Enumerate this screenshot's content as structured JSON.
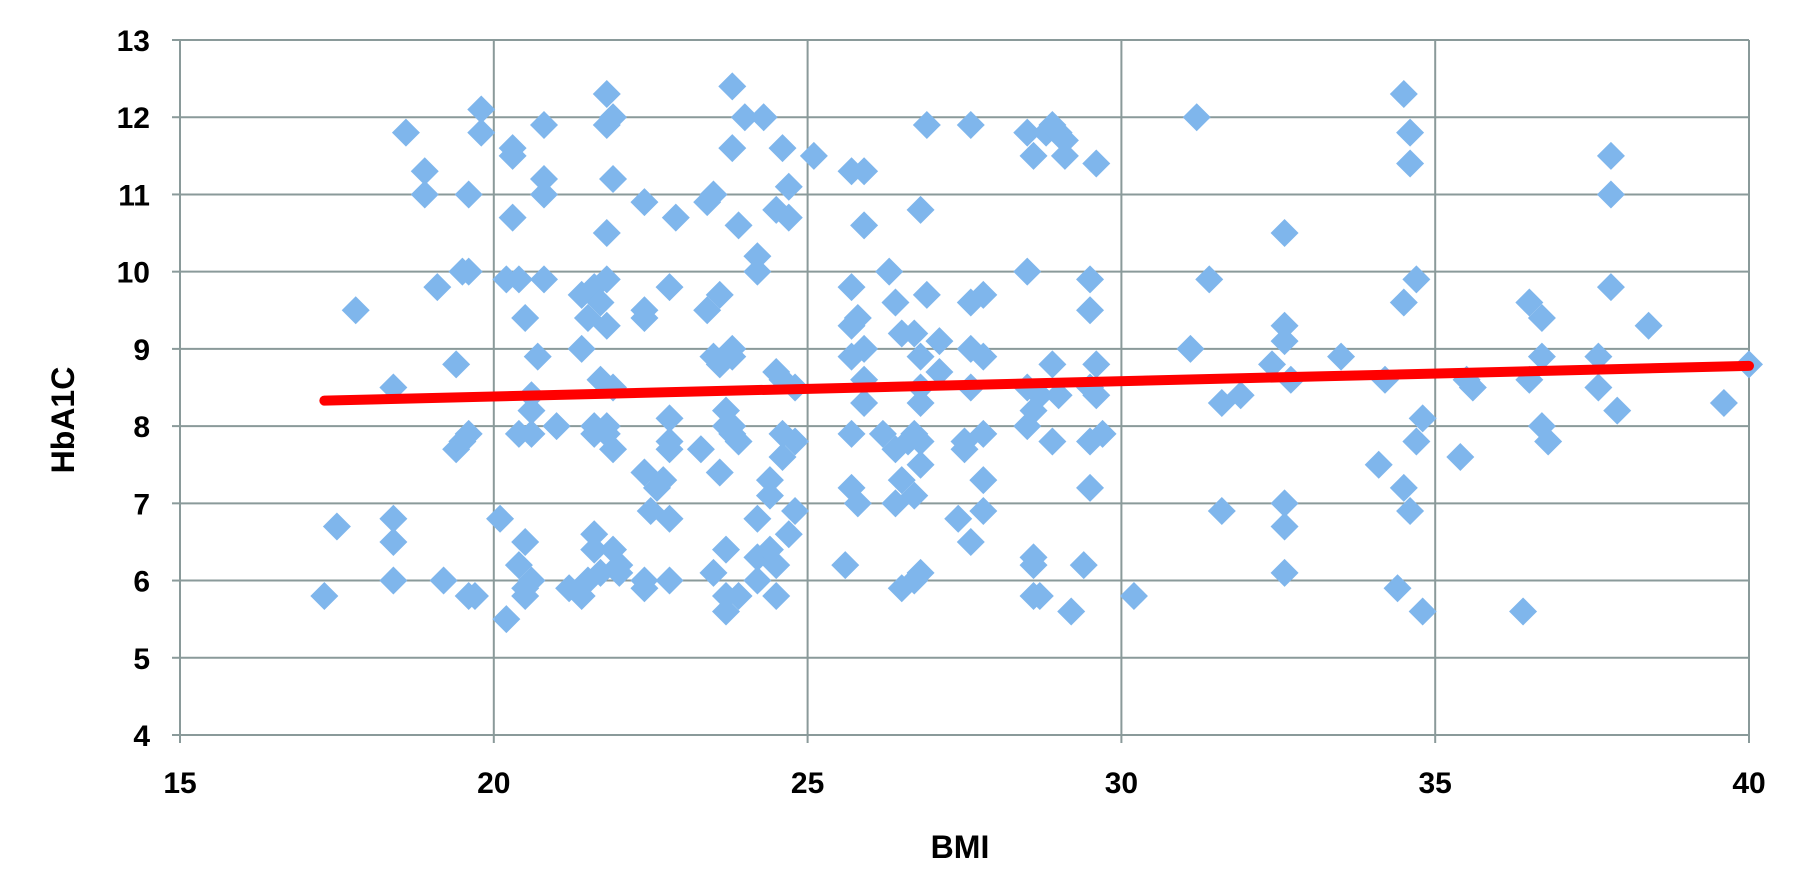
{
  "chart_data": {
    "type": "scatter",
    "xlabel": "BMI",
    "ylabel": "HbA1C",
    "xlim": [
      15,
      40
    ],
    "ylim": [
      4,
      13
    ],
    "x_ticks": [
      15,
      20,
      25,
      30,
      35,
      40
    ],
    "y_ticks": [
      4,
      5,
      6,
      7,
      8,
      9,
      10,
      11,
      12,
      13
    ],
    "grid": true,
    "legend": "none",
    "colors": {
      "points": "#7fb6ec",
      "trendline": "#ff0000",
      "grid": "#8a9a9a"
    },
    "trendline": {
      "x": [
        17.3,
        40.0
      ],
      "y": [
        8.33,
        8.78
      ]
    },
    "series": [
      {
        "marker": "diamond",
        "points": [
          [
            17.3,
            5.8
          ],
          [
            17.5,
            6.7
          ],
          [
            17.8,
            9.5
          ],
          [
            18.4,
            8.5
          ],
          [
            18.4,
            6.8
          ],
          [
            18.4,
            6.5
          ],
          [
            18.4,
            6.0
          ],
          [
            18.6,
            11.8
          ],
          [
            18.9,
            11.3
          ],
          [
            18.9,
            11.0
          ],
          [
            19.1,
            9.8
          ],
          [
            19.2,
            6.0
          ],
          [
            19.4,
            7.7
          ],
          [
            19.4,
            8.8
          ],
          [
            19.5,
            10.0
          ],
          [
            19.5,
            7.8
          ],
          [
            19.6,
            11.0
          ],
          [
            19.6,
            10.0
          ],
          [
            19.6,
            7.9
          ],
          [
            19.6,
            5.8
          ],
          [
            19.7,
            5.8
          ],
          [
            19.8,
            12.1
          ],
          [
            19.8,
            11.8
          ],
          [
            20.1,
            6.8
          ],
          [
            20.2,
            5.5
          ],
          [
            20.2,
            9.9
          ],
          [
            20.3,
            11.6
          ],
          [
            20.3,
            11.5
          ],
          [
            20.3,
            10.7
          ],
          [
            20.4,
            9.9
          ],
          [
            20.4,
            7.9
          ],
          [
            20.4,
            6.2
          ],
          [
            20.5,
            9.4
          ],
          [
            20.5,
            6.5
          ],
          [
            20.5,
            5.9
          ],
          [
            20.5,
            5.8
          ],
          [
            20.6,
            8.4
          ],
          [
            20.6,
            8.2
          ],
          [
            20.6,
            7.9
          ],
          [
            20.6,
            6.0
          ],
          [
            20.7,
            8.9
          ],
          [
            20.8,
            11.9
          ],
          [
            20.8,
            11.2
          ],
          [
            20.8,
            11.0
          ],
          [
            20.8,
            9.9
          ],
          [
            21.0,
            8.0
          ],
          [
            21.2,
            5.9
          ],
          [
            21.4,
            9.0
          ],
          [
            21.4,
            5.8
          ],
          [
            21.4,
            9.7
          ],
          [
            21.5,
            9.4
          ],
          [
            21.5,
            6.0
          ],
          [
            21.6,
            9.8
          ],
          [
            21.6,
            6.6
          ],
          [
            21.6,
            6.4
          ],
          [
            21.6,
            8.0
          ],
          [
            21.6,
            7.9
          ],
          [
            21.7,
            9.6
          ],
          [
            21.7,
            8.6
          ],
          [
            21.7,
            6.1
          ],
          [
            21.8,
            12.3
          ],
          [
            21.8,
            11.9
          ],
          [
            21.8,
            10.5
          ],
          [
            21.8,
            9.9
          ],
          [
            21.8,
            9.3
          ],
          [
            21.8,
            8.0
          ],
          [
            21.8,
            7.9
          ],
          [
            21.9,
            12.0
          ],
          [
            21.9,
            11.2
          ],
          [
            21.9,
            8.5
          ],
          [
            21.9,
            7.7
          ],
          [
            21.9,
            6.4
          ],
          [
            22.0,
            6.2
          ],
          [
            22.0,
            6.1
          ],
          [
            22.4,
            10.9
          ],
          [
            22.4,
            9.5
          ],
          [
            22.4,
            9.4
          ],
          [
            22.4,
            7.4
          ],
          [
            22.4,
            6.0
          ],
          [
            22.4,
            5.9
          ],
          [
            22.5,
            6.9
          ],
          [
            22.6,
            7.2
          ],
          [
            22.7,
            7.3
          ],
          [
            22.8,
            9.8
          ],
          [
            22.8,
            8.1
          ],
          [
            22.8,
            7.8
          ],
          [
            22.8,
            7.7
          ],
          [
            22.8,
            6.8
          ],
          [
            22.8,
            6.0
          ],
          [
            22.9,
            10.7
          ],
          [
            23.3,
            7.7
          ],
          [
            23.4,
            10.9
          ],
          [
            23.4,
            9.5
          ],
          [
            23.5,
            11.0
          ],
          [
            23.5,
            8.9
          ],
          [
            23.5,
            6.1
          ],
          [
            23.6,
            9.7
          ],
          [
            23.6,
            8.8
          ],
          [
            23.6,
            7.4
          ],
          [
            23.7,
            8.2
          ],
          [
            23.7,
            8.0
          ],
          [
            23.7,
            6.4
          ],
          [
            23.7,
            5.8
          ],
          [
            23.7,
            5.6
          ],
          [
            23.8,
            12.4
          ],
          [
            23.8,
            11.6
          ],
          [
            23.8,
            9.0
          ],
          [
            23.8,
            8.9
          ],
          [
            23.8,
            8.0
          ],
          [
            23.8,
            7.9
          ],
          [
            23.9,
            10.6
          ],
          [
            23.9,
            7.8
          ],
          [
            23.9,
            5.8
          ],
          [
            24.0,
            12.0
          ],
          [
            24.2,
            10.2
          ],
          [
            24.2,
            10.0
          ],
          [
            24.2,
            6.8
          ],
          [
            24.2,
            6.3
          ],
          [
            24.2,
            6.0
          ],
          [
            24.3,
            12.0
          ],
          [
            24.4,
            7.3
          ],
          [
            24.4,
            7.1
          ],
          [
            24.4,
            6.4
          ],
          [
            24.5,
            10.8
          ],
          [
            24.5,
            8.7
          ],
          [
            24.5,
            6.2
          ],
          [
            24.5,
            5.8
          ],
          [
            24.6,
            11.6
          ],
          [
            24.6,
            8.6
          ],
          [
            24.6,
            7.9
          ],
          [
            24.6,
            7.6
          ],
          [
            24.7,
            10.7
          ],
          [
            24.7,
            11.1
          ],
          [
            24.7,
            6.6
          ],
          [
            24.8,
            8.5
          ],
          [
            24.8,
            7.8
          ],
          [
            24.8,
            6.9
          ],
          [
            25.1,
            11.5
          ],
          [
            25.6,
            6.2
          ],
          [
            25.7,
            11.3
          ],
          [
            25.7,
            9.8
          ],
          [
            25.7,
            9.3
          ],
          [
            25.7,
            8.9
          ],
          [
            25.7,
            7.9
          ],
          [
            25.7,
            7.2
          ],
          [
            25.8,
            9.4
          ],
          [
            25.8,
            7.0
          ],
          [
            25.9,
            11.3
          ],
          [
            25.9,
            10.6
          ],
          [
            25.9,
            9.0
          ],
          [
            25.9,
            8.6
          ],
          [
            25.9,
            8.3
          ],
          [
            26.2,
            7.9
          ],
          [
            26.3,
            10.0
          ],
          [
            26.4,
            9.6
          ],
          [
            26.4,
            7.7
          ],
          [
            26.4,
            7.0
          ],
          [
            26.5,
            9.2
          ],
          [
            26.5,
            7.3
          ],
          [
            26.5,
            5.9
          ],
          [
            26.6,
            7.8
          ],
          [
            26.7,
            9.2
          ],
          [
            26.7,
            7.9
          ],
          [
            26.7,
            7.1
          ],
          [
            26.7,
            6.0
          ],
          [
            26.8,
            10.8
          ],
          [
            26.8,
            8.9
          ],
          [
            26.8,
            8.5
          ],
          [
            26.8,
            8.3
          ],
          [
            26.8,
            7.8
          ],
          [
            26.8,
            7.5
          ],
          [
            26.8,
            6.1
          ],
          [
            26.9,
            11.9
          ],
          [
            26.9,
            9.7
          ],
          [
            27.1,
            9.1
          ],
          [
            27.1,
            8.7
          ],
          [
            27.4,
            6.8
          ],
          [
            27.5,
            7.8
          ],
          [
            27.5,
            7.7
          ],
          [
            27.6,
            11.9
          ],
          [
            27.6,
            9.6
          ],
          [
            27.6,
            9.0
          ],
          [
            27.6,
            8.5
          ],
          [
            27.6,
            6.5
          ],
          [
            27.8,
            9.7
          ],
          [
            27.8,
            8.9
          ],
          [
            27.8,
            7.9
          ],
          [
            27.8,
            7.3
          ],
          [
            27.8,
            6.9
          ],
          [
            28.5,
            11.8
          ],
          [
            28.5,
            10.0
          ],
          [
            28.5,
            8.5
          ],
          [
            28.5,
            8.0
          ],
          [
            28.6,
            11.5
          ],
          [
            28.6,
            8.2
          ],
          [
            28.6,
            6.3
          ],
          [
            28.6,
            6.2
          ],
          [
            28.6,
            5.8
          ],
          [
            28.7,
            8.4
          ],
          [
            28.7,
            5.8
          ],
          [
            28.8,
            11.8
          ],
          [
            28.9,
            11.9
          ],
          [
            28.9,
            8.8
          ],
          [
            28.9,
            7.8
          ],
          [
            29.0,
            11.8
          ],
          [
            29.0,
            8.4
          ],
          [
            29.1,
            11.7
          ],
          [
            29.1,
            11.5
          ],
          [
            29.2,
            5.6
          ],
          [
            29.4,
            6.2
          ],
          [
            29.5,
            9.9
          ],
          [
            29.5,
            9.5
          ],
          [
            29.5,
            8.5
          ],
          [
            29.5,
            7.8
          ],
          [
            29.5,
            7.2
          ],
          [
            29.6,
            11.4
          ],
          [
            29.6,
            8.8
          ],
          [
            29.6,
            8.4
          ],
          [
            29.7,
            7.9
          ],
          [
            30.2,
            5.8
          ],
          [
            31.2,
            12.0
          ],
          [
            31.1,
            9.0
          ],
          [
            31.4,
            9.9
          ],
          [
            31.6,
            8.3
          ],
          [
            31.6,
            6.9
          ],
          [
            31.9,
            8.4
          ],
          [
            32.4,
            8.8
          ],
          [
            32.6,
            10.5
          ],
          [
            32.6,
            9.3
          ],
          [
            32.6,
            9.1
          ],
          [
            32.6,
            7.0
          ],
          [
            32.6,
            6.7
          ],
          [
            32.6,
            6.1
          ],
          [
            32.7,
            8.6
          ],
          [
            33.5,
            8.9
          ],
          [
            34.1,
            7.5
          ],
          [
            34.2,
            8.6
          ],
          [
            34.4,
            5.9
          ],
          [
            34.5,
            12.3
          ],
          [
            34.5,
            9.6
          ],
          [
            34.5,
            7.2
          ],
          [
            34.6,
            11.8
          ],
          [
            34.6,
            11.4
          ],
          [
            34.6,
            6.9
          ],
          [
            34.7,
            9.9
          ],
          [
            34.7,
            7.8
          ],
          [
            34.8,
            8.1
          ],
          [
            34.8,
            5.6
          ],
          [
            35.4,
            7.6
          ],
          [
            35.5,
            8.6
          ],
          [
            35.6,
            8.5
          ],
          [
            36.4,
            5.6
          ],
          [
            36.5,
            9.6
          ],
          [
            36.5,
            8.6
          ],
          [
            36.7,
            9.4
          ],
          [
            36.7,
            8.9
          ],
          [
            36.7,
            8.0
          ],
          [
            36.8,
            7.8
          ],
          [
            37.6,
            8.9
          ],
          [
            37.6,
            8.5
          ],
          [
            37.8,
            11.5
          ],
          [
            37.8,
            11.0
          ],
          [
            37.8,
            9.8
          ],
          [
            37.9,
            8.2
          ],
          [
            38.4,
            9.3
          ],
          [
            39.6,
            8.3
          ],
          [
            40.0,
            8.8
          ]
        ]
      }
    ]
  }
}
